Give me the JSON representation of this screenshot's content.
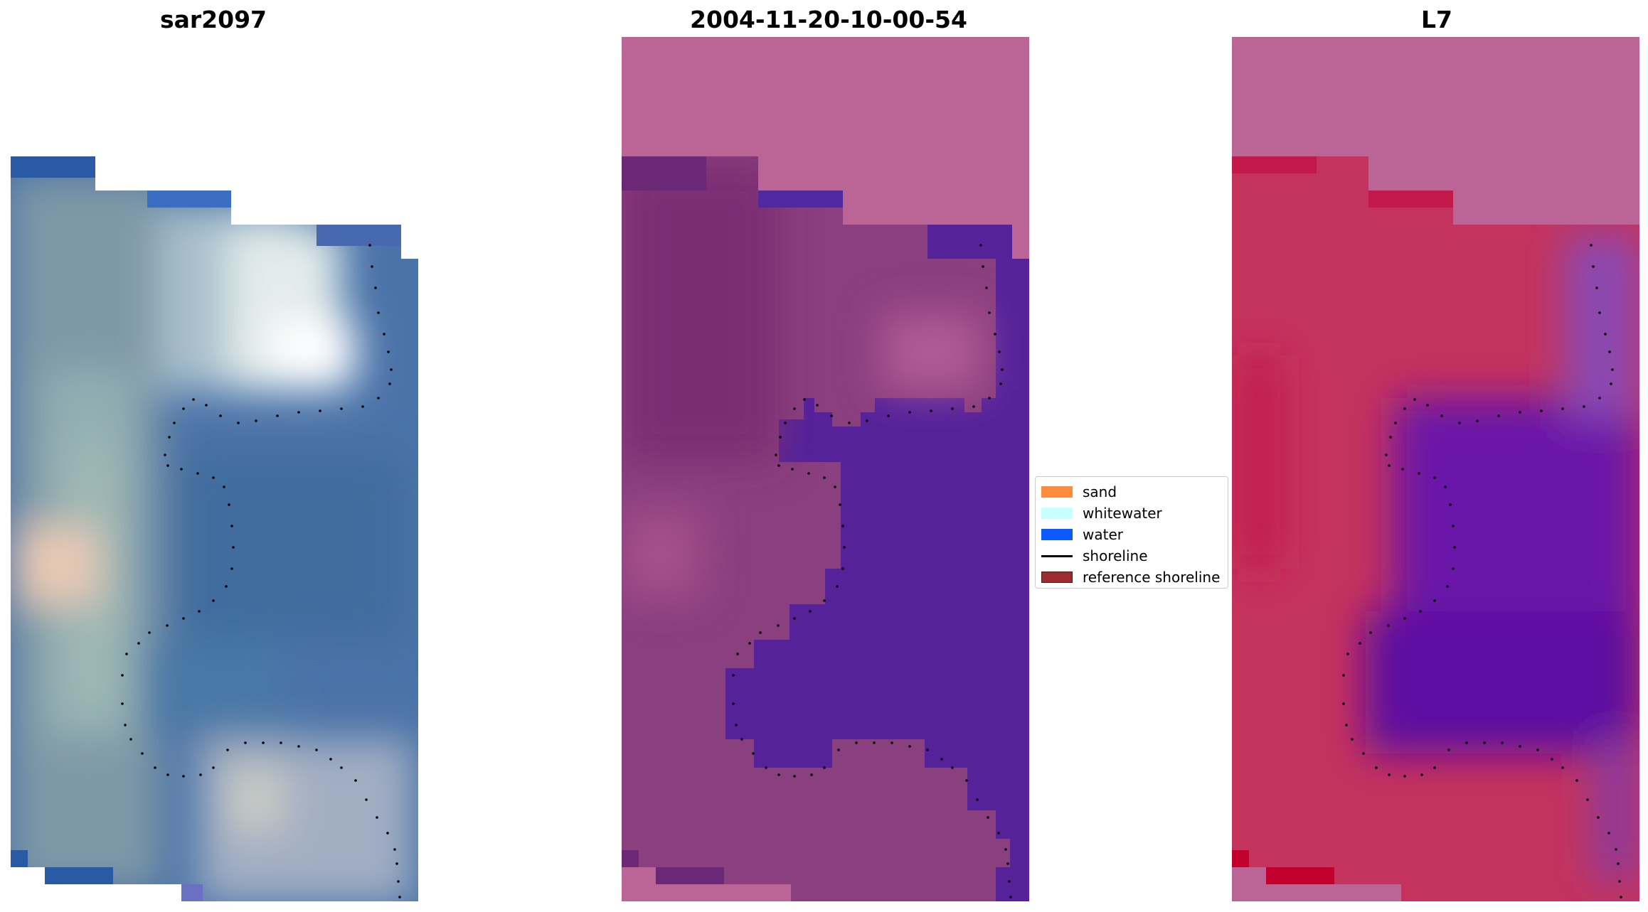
{
  "panels": [
    {
      "title": "sar2097"
    },
    {
      "title": "2004-11-20-10-00-54"
    },
    {
      "title": "L7"
    }
  ],
  "legend": {
    "items": [
      {
        "label": "sand",
        "color": "#ff8c3c",
        "kind": "patch"
      },
      {
        "label": "whitewater",
        "color": "#c8ffff",
        "kind": "patch"
      },
      {
        "label": "water",
        "color": "#0a5aff",
        "kind": "patch"
      },
      {
        "label": "shoreline",
        "color": "#000000",
        "kind": "line"
      },
      {
        "label": "reference shoreline",
        "color": "#9b2d32",
        "kind": "patch"
      }
    ]
  },
  "colors": {
    "rgb_water": "#4a73a8",
    "rgb_sand": "#8fa8b0",
    "rgb_whitewater": "#eef5ee",
    "classified_water": "#55229a",
    "classified_land": "#8a3f7e",
    "classified_nodata": "#ba6595",
    "mndwi_low": "#c4214f",
    "mndwi_high": "#5c0aa2"
  }
}
